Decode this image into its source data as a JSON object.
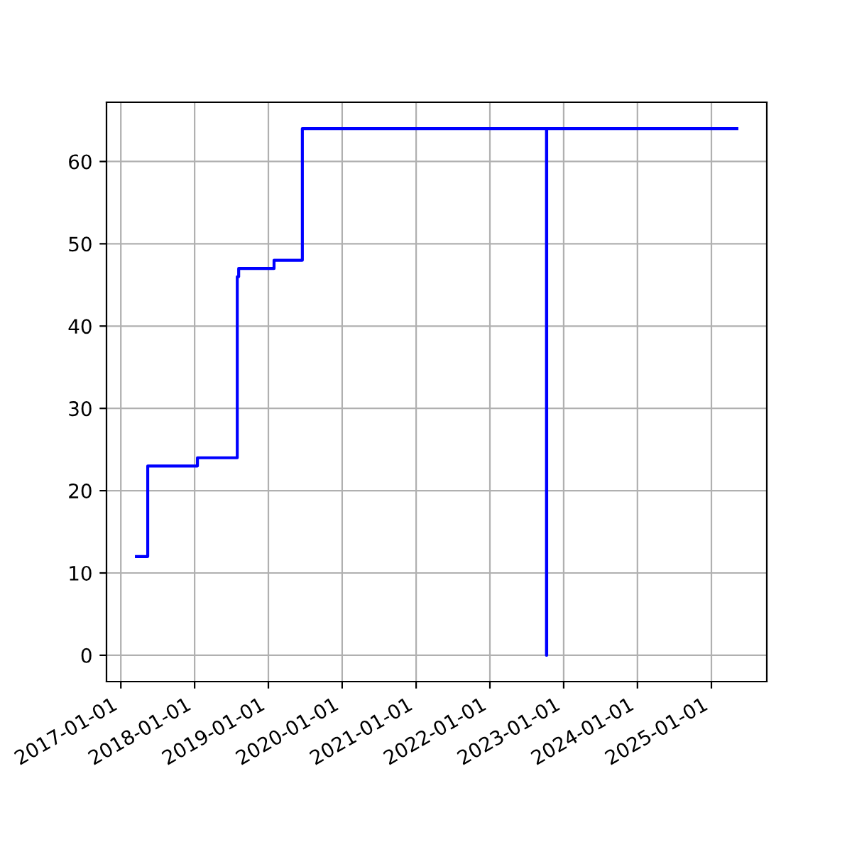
{
  "chart_data": {
    "type": "step",
    "x": [
      "2017-03-19",
      "2017-05-14",
      "2018-01-15",
      "2018-07-31",
      "2018-08-07",
      "2019-01-29",
      "2019-06-18",
      "2022-10-08",
      "2022-10-09",
      "2025-05-07"
    ],
    "series": [
      {
        "color": "#0000ff",
        "values": [
          12,
          23,
          24,
          46,
          47,
          48,
          64,
          0,
          64,
          64
        ]
      }
    ],
    "xlim": [
      "2016-10-22",
      "2025-10-02"
    ],
    "xticks": [
      "2017-01-01",
      "2018-01-01",
      "2019-01-01",
      "2020-01-01",
      "2021-01-01",
      "2022-01-01",
      "2023-01-01",
      "2024-01-01",
      "2025-01-01"
    ],
    "ylim": [
      -3.2,
      67.2
    ],
    "yticks": [
      0,
      10,
      20,
      30,
      40,
      50,
      60
    ],
    "grid": true
  }
}
